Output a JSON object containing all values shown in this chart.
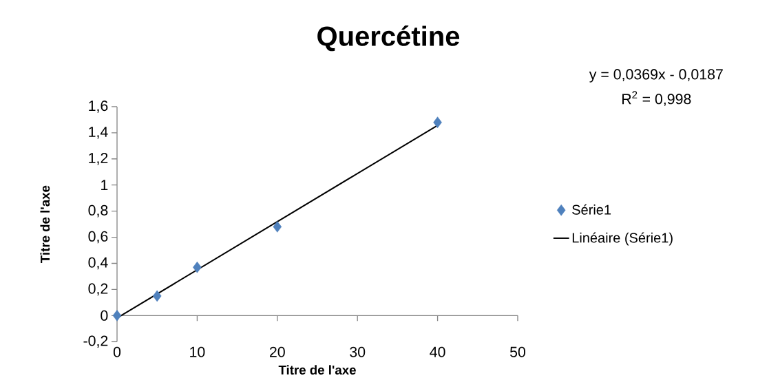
{
  "chart_data": {
    "type": "scatter",
    "title": "Quercétine",
    "xlabel": "Titre de l'axe",
    "ylabel": "Titre de l'axe",
    "annotations": [
      "y = 0,0369x - 0,0187",
      "R$^{2}$ = 0,998"
    ],
    "series": [
      {
        "name": "Série1",
        "color": "#4f81bd",
        "marker": "diamond",
        "x": [
          0,
          5,
          10,
          20,
          40
        ],
        "values": [
          0,
          0.15,
          0.37,
          0.68,
          1.48
        ]
      },
      {
        "name": "Linéaire (Série1)",
        "type": "line",
        "color": "#000000",
        "marker": "none",
        "line_style": "solid",
        "x": [
          0,
          40
        ],
        "values": [
          -0.019,
          1.457
        ]
      }
    ],
    "xlim": [
      0,
      50
    ],
    "xticks": [
      0,
      10,
      20,
      30,
      40,
      50
    ],
    "ylim": [
      -0.2,
      1.6
    ],
    "yticks": [
      {
        "value": -0.2,
        "label": "-0,2"
      },
      {
        "value": 0,
        "label": "0"
      },
      {
        "value": 0.2,
        "label": "0,2"
      },
      {
        "value": 0.4,
        "label": "0,4"
      },
      {
        "value": 0.6,
        "label": "0,6"
      },
      {
        "value": 0.8,
        "label": "0,8"
      },
      {
        "value": 1,
        "label": "1"
      },
      {
        "value": 1.2,
        "label": "1,2"
      },
      {
        "value": 1.4,
        "label": "1,4"
      },
      {
        "value": 1.6,
        "label": "1,6"
      }
    ],
    "grid": false,
    "legend": "right"
  }
}
